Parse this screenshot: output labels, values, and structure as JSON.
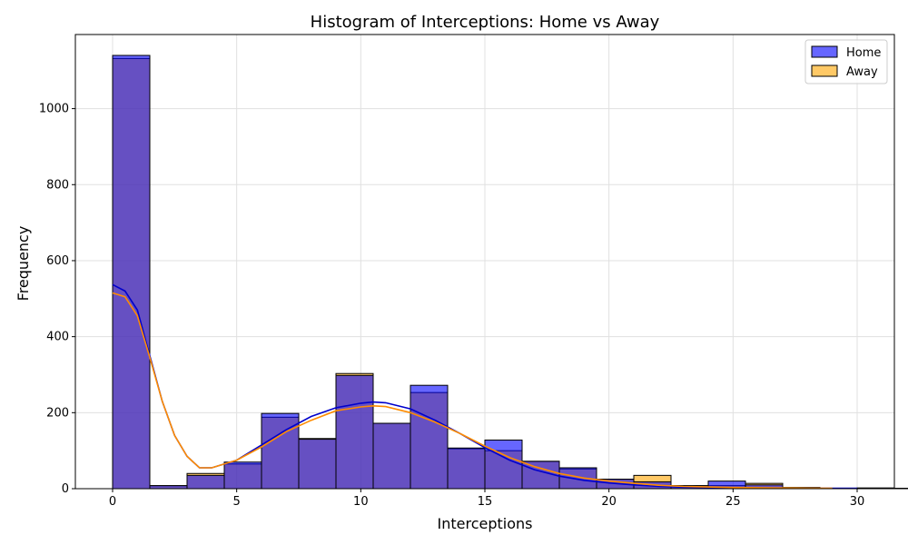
{
  "chart_data": {
    "type": "bar",
    "title": "Histogram of Interceptions: Home vs Away",
    "xlabel": "Interceptions",
    "ylabel": "Frequency",
    "xlim": [
      -1.5,
      31.5
    ],
    "ylim": [
      0,
      1195
    ],
    "xticks": [
      0,
      5,
      10,
      15,
      20,
      25,
      30
    ],
    "yticks": [
      0,
      200,
      400,
      600,
      800,
      1000
    ],
    "grid": true,
    "legend_position": "top-right",
    "series": [
      {
        "name": "Home",
        "color": "#0000ff",
        "kde_color": "#0000cc",
        "bin_start": 0,
        "bin_width": 1.5,
        "values": [
          1140,
          8,
          35,
          70,
          198,
          130,
          298,
          172,
          272,
          107,
          128,
          72,
          55,
          25,
          18,
          8,
          20,
          10,
          3,
          1,
          1,
          1
        ],
        "kde": [
          [
            0,
            537
          ],
          [
            0.5,
            520
          ],
          [
            1,
            470
          ],
          [
            1.5,
            350
          ],
          [
            2,
            230
          ],
          [
            2.5,
            140
          ],
          [
            3,
            85
          ],
          [
            3.5,
            55
          ],
          [
            4,
            55
          ],
          [
            5,
            75
          ],
          [
            6,
            115
          ],
          [
            7,
            155
          ],
          [
            8,
            190
          ],
          [
            9,
            213
          ],
          [
            10,
            225
          ],
          [
            10.5,
            228
          ],
          [
            11,
            226
          ],
          [
            12,
            210
          ],
          [
            13,
            180
          ],
          [
            14,
            145
          ],
          [
            15,
            108
          ],
          [
            16,
            75
          ],
          [
            17,
            50
          ],
          [
            18,
            33
          ],
          [
            19,
            22
          ],
          [
            20,
            15
          ],
          [
            21,
            10
          ],
          [
            22,
            6
          ],
          [
            23,
            4
          ],
          [
            25,
            2
          ],
          [
            27,
            1
          ],
          [
            30,
            1
          ]
        ]
      },
      {
        "name": "Away",
        "color": "#ffa500",
        "kde_color": "#ff8c00",
        "bin_start": 0,
        "bin_width": 1.5,
        "values": [
          1132,
          8,
          40,
          65,
          188,
          132,
          303,
          172,
          253,
          105,
          100,
          72,
          52,
          25,
          35,
          8,
          8,
          14,
          3,
          1,
          2,
          1
        ],
        "kde": [
          [
            0,
            515
          ],
          [
            0.5,
            505
          ],
          [
            1,
            455
          ],
          [
            1.5,
            345
          ],
          [
            2,
            230
          ],
          [
            2.5,
            140
          ],
          [
            3,
            85
          ],
          [
            3.5,
            55
          ],
          [
            4,
            55
          ],
          [
            5,
            75
          ],
          [
            6,
            110
          ],
          [
            7,
            150
          ],
          [
            8,
            180
          ],
          [
            9,
            205
          ],
          [
            10,
            215
          ],
          [
            10.5,
            218
          ],
          [
            11,
            216
          ],
          [
            12,
            200
          ],
          [
            13,
            175
          ],
          [
            14,
            145
          ],
          [
            15,
            112
          ],
          [
            16,
            82
          ],
          [
            17,
            58
          ],
          [
            18,
            40
          ],
          [
            19,
            28
          ],
          [
            20,
            20
          ],
          [
            21,
            14
          ],
          [
            22,
            9
          ],
          [
            23,
            6
          ],
          [
            25,
            3
          ],
          [
            27,
            2
          ],
          [
            29,
            1
          ]
        ]
      }
    ]
  }
}
